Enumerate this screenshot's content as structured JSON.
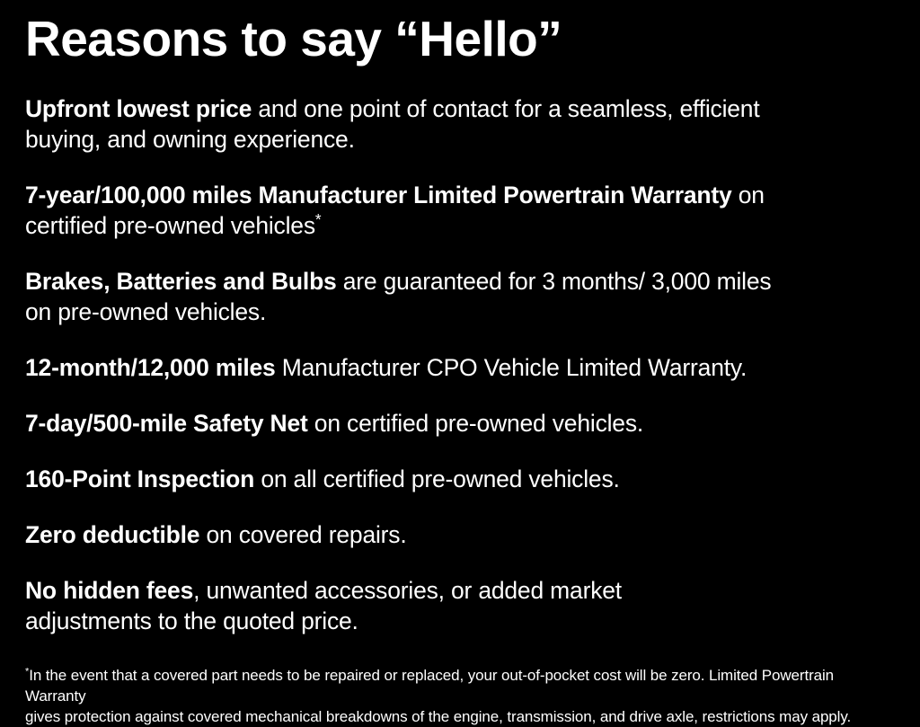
{
  "page": {
    "background_color": "#000000",
    "text_color": "#ffffff"
  },
  "title": "Reasons to say “Hello”",
  "paragraphs": [
    {
      "lines": [
        {
          "bold": "Upfront lowest price",
          "regular": " and one point of contact for a seamless, efficient"
        },
        {
          "regular": "buying, and owning experience."
        }
      ]
    },
    {
      "lines": [
        {
          "bold": "7-year/100,000 miles Manufacturer Limited Powertrain Warranty",
          "regular": " on"
        },
        {
          "regular": "certified pre-owned vehicles",
          "superscript": "*"
        }
      ]
    },
    {
      "lines": [
        {
          "bold": "Brakes, Batteries and Bulbs",
          "regular": " are guaranteed for 3 months/ 3,000 miles"
        },
        {
          "regular": "on pre-owned vehicles."
        }
      ]
    },
    {
      "lines": [
        {
          "bold": "12-month/12,000 miles",
          "regular": " Manufacturer CPO Vehicle Limited Warranty."
        }
      ]
    },
    {
      "lines": [
        {
          "bold": "7-day/500-mile Safety Net",
          "regular": " on certified pre-owned vehicles."
        }
      ]
    },
    {
      "lines": [
        {
          "bold": "160-Point Inspection",
          "regular": " on all certified pre-owned vehicles."
        }
      ]
    },
    {
      "lines": [
        {
          "bold": "Zero deductible",
          "regular": " on covered repairs."
        }
      ]
    },
    {
      "lines": [
        {
          "bold": "No hidden fees",
          "regular": ", unwanted accessories, or added market"
        },
        {
          "regular": "adjustments to the quoted price."
        }
      ]
    }
  ],
  "footnote": {
    "superscript": "*",
    "lines": [
      "In the event that a covered part needs to be repaired or replaced, your out-of-pocket cost will be zero. Limited Powertrain Warranty",
      "gives protection against covered mechanical breakdowns of the engine, transmission, and drive axle, restrictions may apply."
    ]
  }
}
